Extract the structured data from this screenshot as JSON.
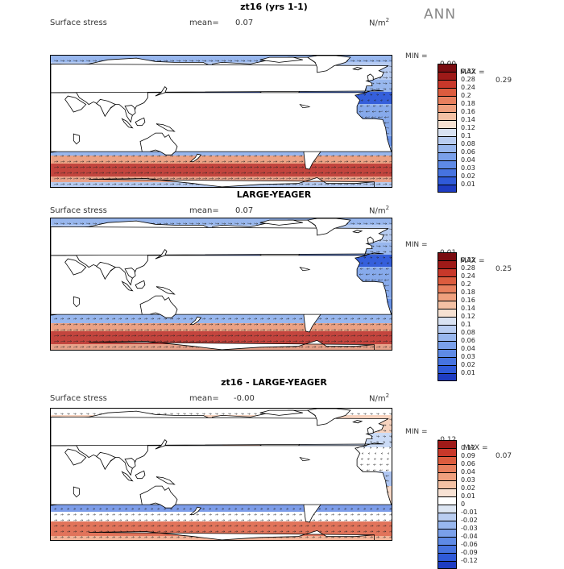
{
  "season_label": "ANN",
  "colors": {
    "scale_pos": [
      "#0a1e7a",
      "#1e3cc2",
      "#2f5ad9",
      "#4673e0",
      "#5e8ae6",
      "#7aa0ea",
      "#98b7ee",
      "#b9cdf1",
      "#d9e2f2",
      "#f6e1d2",
      "#f4c1a4",
      "#efa07e",
      "#e8805e",
      "#dc5c3e",
      "#c8382a",
      "#9e1a18",
      "#7a0c10"
    ],
    "scale_diff": [
      "#0a1e7a",
      "#1e3cc2",
      "#2f5ad9",
      "#4673e0",
      "#5e8ae6",
      "#7aa0ea",
      "#98b7ee",
      "#b9cdf1",
      "#dde6f3",
      "#ffffff",
      "#f8e2d4",
      "#f4c1a4",
      "#efa07e",
      "#e8805e",
      "#dc5c3e",
      "#c8382a",
      "#9e1a18"
    ],
    "land": "#ffffff",
    "coast": "#000000"
  },
  "panels": [
    {
      "title": "zt16 (yrs 1-1)",
      "variable": "Surface stress",
      "mean_label": "mean=",
      "mean_value": "0.07",
      "units": "N/m",
      "units_sup": "2",
      "min_label": "MIN =",
      "min_value": "0.00",
      "max_label": "MAX =",
      "max_value": "0.29",
      "scale": "pos",
      "ticks": [
        "0.32",
        "0.28",
        "0.24",
        "0.2",
        "0.18",
        "0.16",
        "0.14",
        "0.12",
        "0.1",
        "0.08",
        "0.06",
        "0.04",
        "0.03",
        "0.02",
        "0.01"
      ]
    },
    {
      "title": "LARGE-YEAGER",
      "variable": "Surface stress",
      "mean_label": "mean=",
      "mean_value": "0.07",
      "units": "N/m",
      "units_sup": "2",
      "min_label": "MIN =",
      "min_value": "0.01",
      "max_label": "MAX =",
      "max_value": "0.25",
      "scale": "pos",
      "ticks": [
        "0.32",
        "0.28",
        "0.24",
        "0.2",
        "0.18",
        "0.16",
        "0.14",
        "0.12",
        "0.1",
        "0.08",
        "0.06",
        "0.04",
        "0.03",
        "0.02",
        "0.01"
      ]
    },
    {
      "title": "zt16 - LARGE-YEAGER",
      "variable": "Surface stress",
      "mean_label": "mean=",
      "mean_value": "-0.00",
      "units": "N/m",
      "units_sup": "2",
      "min_label": "MIN =",
      "min_value": "-0.12",
      "max_label": "MAX =",
      "max_value": "0.07",
      "scale": "diff",
      "ticks": [
        "0.12",
        "0.09",
        "0.06",
        "0.04",
        "0.03",
        "0.02",
        "0.01",
        "0",
        "-0.01",
        "-0.02",
        "-0.03",
        "-0.04",
        "-0.06",
        "-0.09",
        "-0.12"
      ]
    }
  ],
  "chart_data": [
    {
      "type": "heatmap",
      "title": "zt16 (yrs 1-1)",
      "variable": "Surface stress",
      "units": "N/m2",
      "mean": 0.07,
      "min": 0.0,
      "max": 0.29,
      "legend_levels": [
        0.01,
        0.02,
        0.03,
        0.04,
        0.06,
        0.08,
        0.1,
        0.12,
        0.14,
        0.16,
        0.18,
        0.2,
        0.24,
        0.28,
        0.32
      ]
    },
    {
      "type": "heatmap",
      "title": "LARGE-YEAGER",
      "variable": "Surface stress",
      "units": "N/m2",
      "mean": 0.07,
      "min": 0.01,
      "max": 0.25,
      "legend_levels": [
        0.01,
        0.02,
        0.03,
        0.04,
        0.06,
        0.08,
        0.1,
        0.12,
        0.14,
        0.16,
        0.18,
        0.2,
        0.24,
        0.28,
        0.32
      ]
    },
    {
      "type": "heatmap",
      "title": "zt16 - LARGE-YEAGER",
      "variable": "Surface stress",
      "units": "N/m2",
      "mean": -0.0,
      "min": -0.12,
      "max": 0.07,
      "legend_levels": [
        -0.12,
        -0.09,
        -0.06,
        -0.04,
        -0.03,
        -0.02,
        -0.01,
        0,
        0.01,
        0.02,
        0.03,
        0.04,
        0.06,
        0.09,
        0.12
      ]
    }
  ]
}
